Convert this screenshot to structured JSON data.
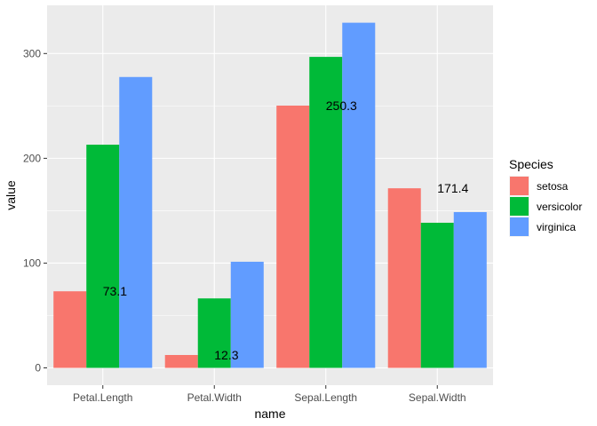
{
  "chart_data": {
    "type": "bar",
    "categories": [
      "Petal.Length",
      "Petal.Width",
      "Sepal.Length",
      "Sepal.Width"
    ],
    "series": [
      {
        "name": "setosa",
        "color": "#F8766D",
        "values": [
          73.1,
          12.3,
          250.3,
          171.4
        ]
      },
      {
        "name": "versicolor",
        "color": "#00BA38",
        "values": [
          213.0,
          66.3,
          296.8,
          138.5
        ]
      },
      {
        "name": "virginica",
        "color": "#619CFF",
        "values": [
          277.6,
          101.3,
          329.4,
          148.7
        ]
      }
    ],
    "data_labels": [
      "73.1",
      "12.3",
      "250.3",
      "171.4"
    ],
    "xlabel": "name",
    "ylabel": "value",
    "yticks": [
      0,
      100,
      200,
      300
    ],
    "ylim": [
      -16.5,
      346
    ],
    "grid": true,
    "legend": {
      "title": "Species",
      "position": "right"
    },
    "panel_background": "#EBEBEB"
  }
}
